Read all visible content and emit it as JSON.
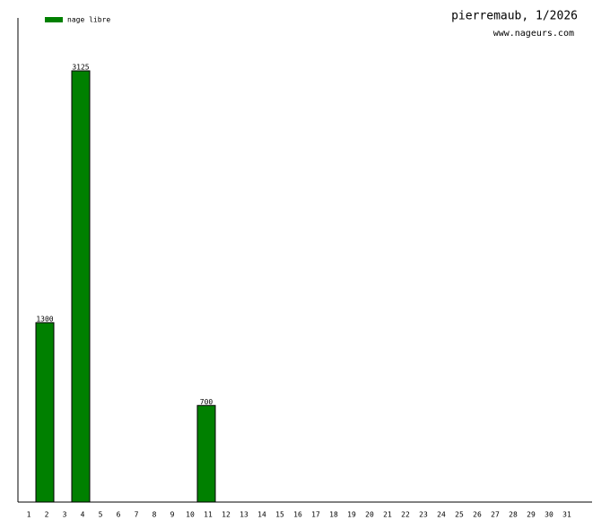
{
  "chart_data": {
    "type": "bar",
    "title": "pierremaub, 1/2026",
    "subtitle": "www.nageurs.com",
    "categories": [
      "1",
      "2",
      "3",
      "4",
      "5",
      "6",
      "7",
      "8",
      "9",
      "10",
      "11",
      "12",
      "13",
      "14",
      "15",
      "16",
      "17",
      "18",
      "19",
      "20",
      "21",
      "22",
      "23",
      "24",
      "25",
      "26",
      "27",
      "28",
      "29",
      "30",
      "31"
    ],
    "series": [
      {
        "name": "nage libre",
        "color": "#008000",
        "values": [
          null,
          1300,
          null,
          3125,
          null,
          null,
          null,
          null,
          null,
          null,
          700,
          null,
          null,
          null,
          null,
          null,
          null,
          null,
          null,
          null,
          null,
          null,
          null,
          null,
          null,
          null,
          null,
          null,
          null,
          null,
          null
        ]
      }
    ]
  }
}
